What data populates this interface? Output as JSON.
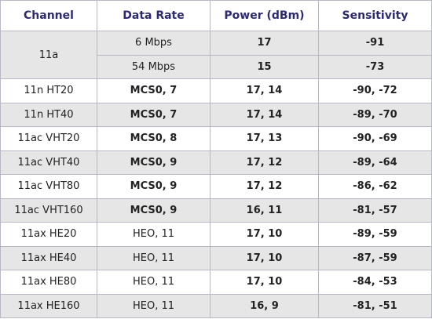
{
  "table": {
    "header": [
      "Channel",
      "Data Rate",
      "Power (dBm)",
      "Sensitivity"
    ],
    "rows": [
      {
        "channel": "11a",
        "data_rate": "6 Mbps",
        "power": "17",
        "sensitivity": "-91"
      },
      {
        "data_rate": "54 Mbps",
        "power": "15",
        "sensitivity": "-73"
      },
      {
        "channel": "11n HT20",
        "data_rate": "MCS0, 7",
        "power": "17, 14",
        "sensitivity": "-90, -72"
      },
      {
        "channel": "11n HT40",
        "data_rate": "MCS0, 7",
        "power": "17, 14",
        "sensitivity": "-89, -70"
      },
      {
        "channel": "11ac VHT20",
        "data_rate": "MCS0, 8",
        "power": "17, 13",
        "sensitivity": "-90, -69"
      },
      {
        "channel": "11ac VHT40",
        "data_rate": "MCS0, 9",
        "power": "17, 12",
        "sensitivity": "-89, -64"
      },
      {
        "channel": "11ac VHT80",
        "data_rate": "MCS0, 9",
        "power": "17, 12",
        "sensitivity": "-86, -62"
      },
      {
        "channel": "11ac VHT160",
        "data_rate": "MCS0, 9",
        "power": "16, 11",
        "sensitivity": "-81, -57"
      },
      {
        "channel": "11ax HE20",
        "data_rate": "HEO, 11",
        "power": "17, 10",
        "sensitivity": "-89, -59"
      },
      {
        "channel": "11ax HE40",
        "data_rate": "HEO, 11",
        "power": "17, 10",
        "sensitivity": "-87, -59"
      },
      {
        "channel": "11ax HE80",
        "data_rate": "HEO, 11",
        "power": "17, 10",
        "sensitivity": "-84, -53"
      },
      {
        "channel": "11ax HE160",
        "data_rate": "HEO, 11",
        "power": "16, 9",
        "sensitivity": "-81, -51"
      }
    ]
  }
}
